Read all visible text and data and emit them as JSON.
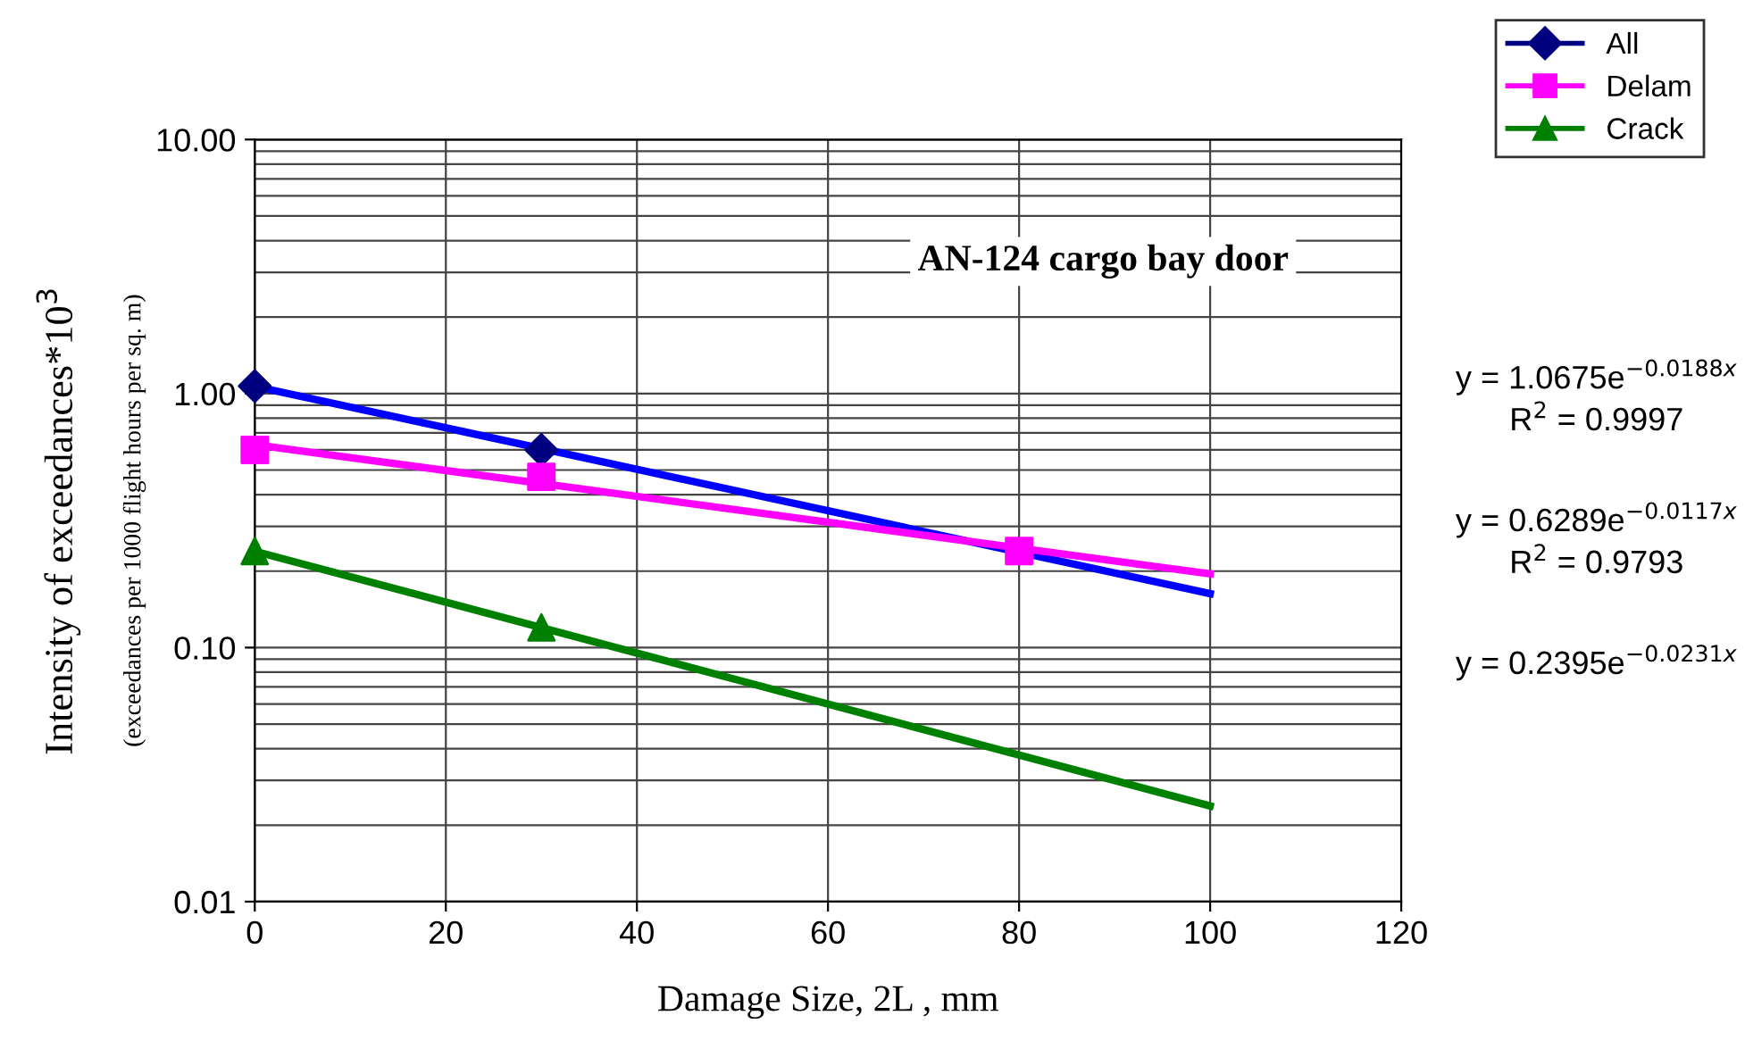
{
  "chart_data": {
    "type": "scatter",
    "xlabel": "Damage Size, 2L , mm",
    "ylabel": "Intensity of exceedances*10$^{3}$\n(exceedances per 1000 flight hours per sq. m)",
    "annotations": [
      "AN-124 cargo bay door",
      "y = 1.0675e$^{−0.0188x}$\nR$^{2}$ = 0.9997",
      "y = 0.6289e$^{−0.0117x}$\nR$^{2}$ = 0.9793",
      "y = 0.2395e$^{−0.0231x}$"
    ],
    "series": [
      {
        "name": "All",
        "marker": "diamond",
        "color": "#000080",
        "x": [
          0,
          30
        ],
        "values": [
          1.07,
          0.6
        ]
      },
      {
        "name": "Delam",
        "marker": "square",
        "color": "#ff00ff",
        "x": [
          0,
          30,
          80
        ],
        "values": [
          0.6,
          0.47,
          0.24
        ]
      },
      {
        "name": "Crack",
        "marker": "triangle",
        "color": "#008000",
        "x": [
          0,
          30
        ],
        "values": [
          0.24,
          0.12
        ]
      },
      {
        "type": "line",
        "color": "#0000ff",
        "x": [
          0,
          100
        ],
        "values": [
          1.0675,
          0.163
        ]
      },
      {
        "type": "line",
        "color": "#ff00ff",
        "x": [
          0,
          100
        ],
        "values": [
          0.6289,
          0.195
        ]
      },
      {
        "type": "line",
        "color": "#008000",
        "x": [
          0,
          100
        ],
        "values": [
          0.2395,
          0.0238
        ]
      }
    ],
    "xlim": [
      0,
      120
    ],
    "xticks": [
      0,
      20,
      40,
      60,
      80,
      100,
      120
    ],
    "ylim": [
      0.01,
      10
    ],
    "yticks": [
      0.01,
      {
        "value": 0.1,
        "label": "0.10"
      },
      {
        "value": 1,
        "label": "1.00"
      },
      {
        "value": 10,
        "label": "10.00"
      }
    ],
    "log": "y",
    "grid": true,
    "legend": "top right"
  }
}
